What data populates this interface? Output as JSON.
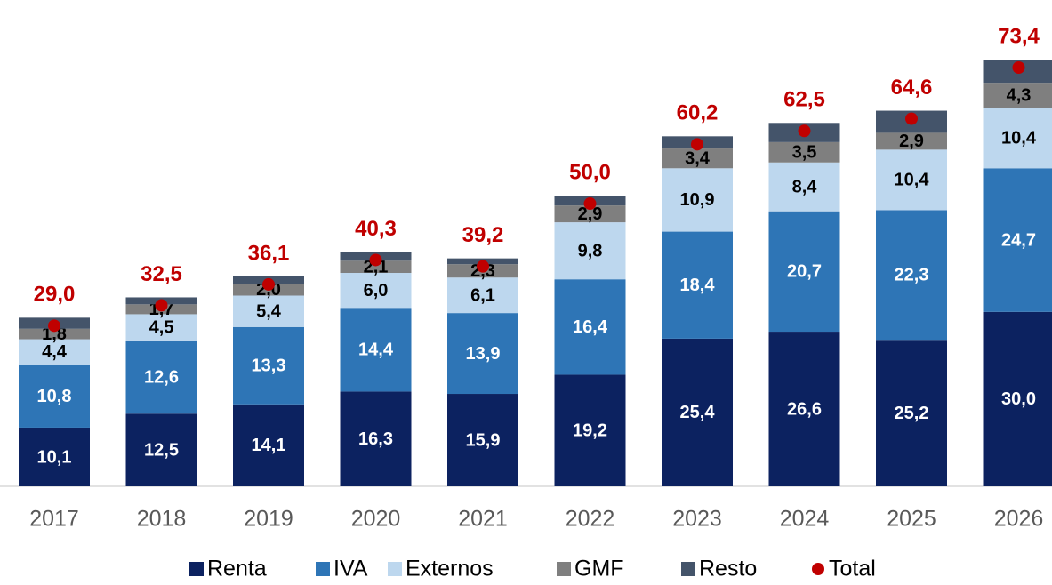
{
  "chart_data": {
    "type": "bar",
    "stacked": true,
    "categories": [
      "2017",
      "2018",
      "2019",
      "2020",
      "2021",
      "2022",
      "2023",
      "2024",
      "2025",
      "2026"
    ],
    "series": [
      {
        "name": "Renta",
        "color": "#0c2260",
        "label_color": "#ffffff",
        "values": [
          10.1,
          12.5,
          14.1,
          16.3,
          15.9,
          19.2,
          25.4,
          26.6,
          25.2,
          30.0
        ],
        "value_labels": [
          "10,1",
          "12,5",
          "14,1",
          "16,3",
          "15,9",
          "19,2",
          "25,4",
          "26,6",
          "25,2",
          "30,0"
        ]
      },
      {
        "name": "IVA",
        "color": "#2e75b6",
        "label_color": "#ffffff",
        "values": [
          10.8,
          12.6,
          13.3,
          14.4,
          13.9,
          16.4,
          18.4,
          20.7,
          22.3,
          24.7
        ],
        "value_labels": [
          "10,8",
          "12,6",
          "13,3",
          "14,4",
          "13,9",
          "16,4",
          "18,4",
          "20,7",
          "22,3",
          "24,7"
        ]
      },
      {
        "name": "Externos",
        "color": "#bdd7ee",
        "label_color": "#000000",
        "values": [
          4.4,
          4.5,
          5.4,
          6.0,
          6.1,
          9.8,
          10.9,
          8.4,
          10.4,
          10.4
        ],
        "value_labels": [
          "4,4",
          "4,5",
          "5,4",
          "6,0",
          "6,1",
          "9,8",
          "10,9",
          "8,4",
          "10,4",
          "10,4"
        ]
      },
      {
        "name": "GMF",
        "color": "#7f7f7f",
        "label_color": "#000000",
        "values": [
          1.8,
          1.7,
          2.0,
          2.1,
          2.3,
          2.9,
          3.4,
          3.5,
          2.9,
          4.3
        ],
        "value_labels": [
          "1,8",
          "1,7",
          "2,0",
          "2,1",
          "2,3",
          "2,9",
          "3,4",
          "3,5",
          "2,9",
          "4,3"
        ]
      },
      {
        "name": "Resto",
        "color": "#44546a",
        "values": [
          1.9,
          1.2,
          1.3,
          1.5,
          1.0,
          1.7,
          2.1,
          3.3,
          3.8,
          4.0
        ]
      },
      {
        "name": "Total",
        "color": "#c00000",
        "type": "dot",
        "values": [
          29.0,
          32.5,
          36.1,
          40.3,
          39.2,
          50.0,
          60.2,
          62.5,
          64.6,
          73.4
        ],
        "value_labels": [
          "29,0",
          "32,5",
          "36,1",
          "40,3",
          "39,2",
          "50,0",
          "60,2",
          "62,5",
          "64,6",
          "73,4"
        ]
      }
    ]
  }
}
